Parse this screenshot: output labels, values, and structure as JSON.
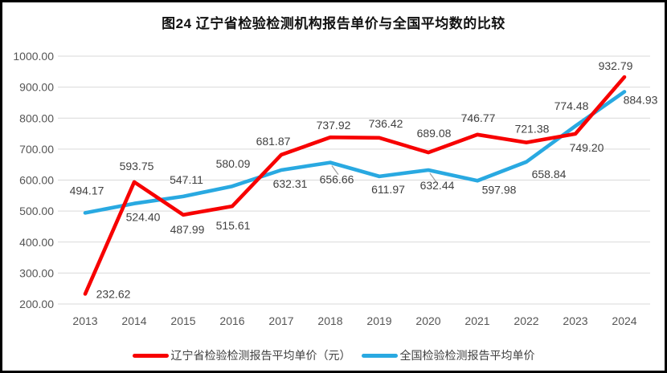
{
  "chart_data": {
    "type": "line",
    "title": "图24 辽宁省检验检测机构报告单价与全国平均数的比较",
    "categories": [
      "2013",
      "2014",
      "2015",
      "2016",
      "2017",
      "2018",
      "2019",
      "2020",
      "2021",
      "2022",
      "2023",
      "2024"
    ],
    "series": [
      {
        "name": "辽宁省检验检测报告平均单价（元）",
        "color": "#F70000",
        "values": [
          232.62,
          593.75,
          487.99,
          515.61,
          681.87,
          737.92,
          736.42,
          689.08,
          746.77,
          721.38,
          749.2,
          932.79
        ],
        "label_offsets": [
          [
            35,
            5
          ],
          [
            3,
            -15
          ],
          [
            5,
            23
          ],
          [
            1,
            29
          ],
          [
            -10,
            -12
          ],
          [
            4,
            -10
          ],
          [
            8,
            -13
          ],
          [
            7,
            -19
          ],
          [
            1,
            -16
          ],
          [
            7,
            -12
          ],
          [
            14,
            22
          ],
          [
            -11,
            -9
          ]
        ],
        "leader_indices": []
      },
      {
        "name": "全国检验检测报告平均单价",
        "color": "#29A9E1",
        "values": [
          494.17,
          524.4,
          547.11,
          580.09,
          632.31,
          656.66,
          611.97,
          632.44,
          597.98,
          658.84,
          774.48,
          884.93
        ],
        "label_offsets": [
          [
            2,
            -23
          ],
          [
            11,
            22
          ],
          [
            4,
            -16
          ],
          [
            1,
            -23
          ],
          [
            11,
            22
          ],
          [
            8,
            26
          ],
          [
            11,
            21
          ],
          [
            11,
            24
          ],
          [
            27,
            16
          ],
          [
            28,
            20
          ],
          [
            -5,
            -20
          ],
          [
            20,
            15
          ]
        ],
        "leader_indices": [
          5,
          7
        ]
      }
    ],
    "ylim": [
      200,
      1000
    ],
    "ytick_step": 100,
    "ytick_format_decimals": 2,
    "grid": true,
    "grid_color": "#d9d9d9",
    "axis_label_color": "#555555",
    "data_label_color": "#404040",
    "leader_color": "#9e9e9e",
    "legend_position": "bottom"
  }
}
